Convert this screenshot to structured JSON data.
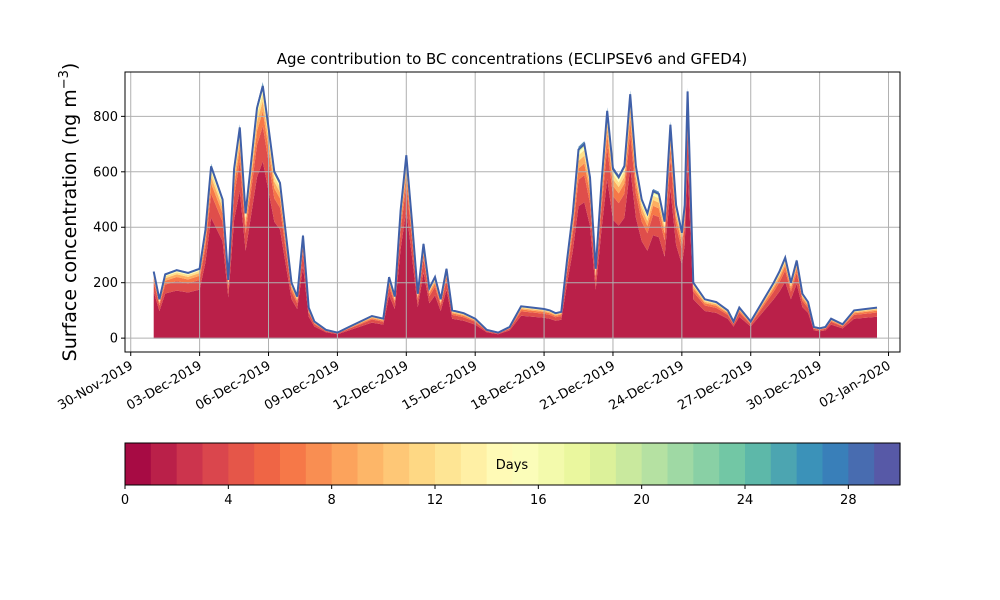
{
  "chart_data": {
    "type": "area",
    "title": "Age contribution to BC concentrations (ECLIPSEv6 and GFED4)",
    "ylabel": "Surface concentration (ng m⁻³)",
    "ylabel_main": "Surface concentration (ng m",
    "ylabel_exp": "−3",
    "ylabel_close": ")",
    "xlabel": "",
    "grid": true,
    "ylim": [
      -50,
      960
    ],
    "yticks": [
      0,
      200,
      400,
      600,
      800
    ],
    "xlim": [
      "2019-11-29T18:00",
      "2020-01-02T12:00"
    ],
    "xticks": [
      "30-Nov-2019",
      "03-Dec-2019",
      "06-Dec-2019",
      "09-Dec-2019",
      "12-Dec-2019",
      "15-Dec-2019",
      "18-Dec-2019",
      "21-Dec-2019",
      "24-Dec-2019",
      "27-Dec-2019",
      "30-Dec-2019",
      "02-Jan-2020"
    ],
    "series": [
      {
        "description": "total surface BC concentration (all ages)",
        "x": [
          "2019-12-01",
          "2019-12-01T06:00",
          "2019-12-01T12:00",
          "2019-12-02",
          "2019-12-02T12:00",
          "2019-12-03",
          "2019-12-03T06:00",
          "2019-12-03T12:00",
          "2019-12-04",
          "2019-12-04T06:00",
          "2019-12-04T12:00",
          "2019-12-04T18:00",
          "2019-12-05",
          "2019-12-05T12:00",
          "2019-12-05T18:00",
          "2019-12-06",
          "2019-12-06T06:00",
          "2019-12-06T12:00",
          "2019-12-07",
          "2019-12-07T06:00",
          "2019-12-07T12:00",
          "2019-12-07T18:00",
          "2019-12-08",
          "2019-12-08T06:00",
          "2019-12-08T12:00",
          "2019-12-09",
          "2019-12-09T12:00",
          "2019-12-10",
          "2019-12-10T12:00",
          "2019-12-11",
          "2019-12-11T06:00",
          "2019-12-11T12:00",
          "2019-12-11T18:00",
          "2019-12-12",
          "2019-12-12T06:00",
          "2019-12-12T12:00",
          "2019-12-12T18:00",
          "2019-12-13",
          "2019-12-13T06:00",
          "2019-12-13T12:00",
          "2019-12-13T18:00",
          "2019-12-14",
          "2019-12-14T12:00",
          "2019-12-15",
          "2019-12-15T12:00",
          "2019-12-16",
          "2019-12-16T06:00",
          "2019-12-16T12:00",
          "2019-12-17",
          "2019-12-17T12:00",
          "2019-12-18",
          "2019-12-18T06:00",
          "2019-12-18T12:00",
          "2019-12-18T18:00",
          "2019-12-19",
          "2019-12-19T06:00",
          "2019-12-19T12:00",
          "2019-12-19T18:00",
          "2019-12-20",
          "2019-12-20T06:00",
          "2019-12-20T12:00",
          "2019-12-20T18:00",
          "2019-12-21",
          "2019-12-21T06:00",
          "2019-12-21T12:00",
          "2019-12-21T18:00",
          "2019-12-22",
          "2019-12-22T06:00",
          "2019-12-22T12:00",
          "2019-12-22T18:00",
          "2019-12-23",
          "2019-12-23T06:00",
          "2019-12-23T12:00",
          "2019-12-23T18:00",
          "2019-12-24",
          "2019-12-24T03:00",
          "2019-12-24T06:00",
          "2019-12-24T12:00",
          "2019-12-25",
          "2019-12-25T12:00",
          "2019-12-26",
          "2019-12-26T06:00",
          "2019-12-26T12:00",
          "2019-12-27",
          "2019-12-27T12:00",
          "2019-12-28",
          "2019-12-28T06:00",
          "2019-12-28T12:00",
          "2019-12-28T18:00",
          "2019-12-29",
          "2019-12-29T06:00",
          "2019-12-29T12:00",
          "2019-12-29T18:00",
          "2019-12-30",
          "2019-12-30T06:00",
          "2019-12-30T12:00",
          "2019-12-31",
          "2019-12-31T12:00",
          "2020-01-01",
          "2020-01-01T12:00"
        ],
        "values": [
          240,
          140,
          230,
          245,
          235,
          250,
          390,
          620,
          500,
          210,
          610,
          760,
          450,
          830,
          910,
          760,
          600,
          560,
          200,
          150,
          370,
          110,
          60,
          45,
          30,
          20,
          40,
          60,
          80,
          70,
          220,
          150,
          460,
          660,
          420,
          160,
          340,
          180,
          220,
          140,
          250,
          100,
          90,
          70,
          30,
          20,
          30,
          40,
          115,
          110,
          105,
          100,
          90,
          95,
          280,
          450,
          680,
          700,
          580,
          250,
          560,
          820,
          610,
          580,
          620,
          880,
          620,
          500,
          450,
          530,
          520,
          420,
          770,
          480,
          380,
          480,
          890,
          200,
          140,
          130,
          100,
          60,
          110,
          60,
          130,
          200,
          240,
          290,
          200,
          280,
          160,
          130,
          40,
          35,
          40,
          70,
          50,
          100,
          105,
          110
        ]
      }
    ],
    "colorbar": {
      "label": "Days",
      "ticks": [
        0,
        4,
        8,
        12,
        16,
        20,
        24,
        28
      ],
      "range": [
        0,
        30
      ],
      "n_bins": 30,
      "colormap": "Spectral",
      "colors": [
        "#9e0142",
        "#d53e4f",
        "#f46d43",
        "#fdae61",
        "#fee08b",
        "#ffffbf",
        "#e6f598",
        "#abdda4",
        "#66c2a5",
        "#3288bd",
        "#5e4fa2"
      ]
    }
  }
}
